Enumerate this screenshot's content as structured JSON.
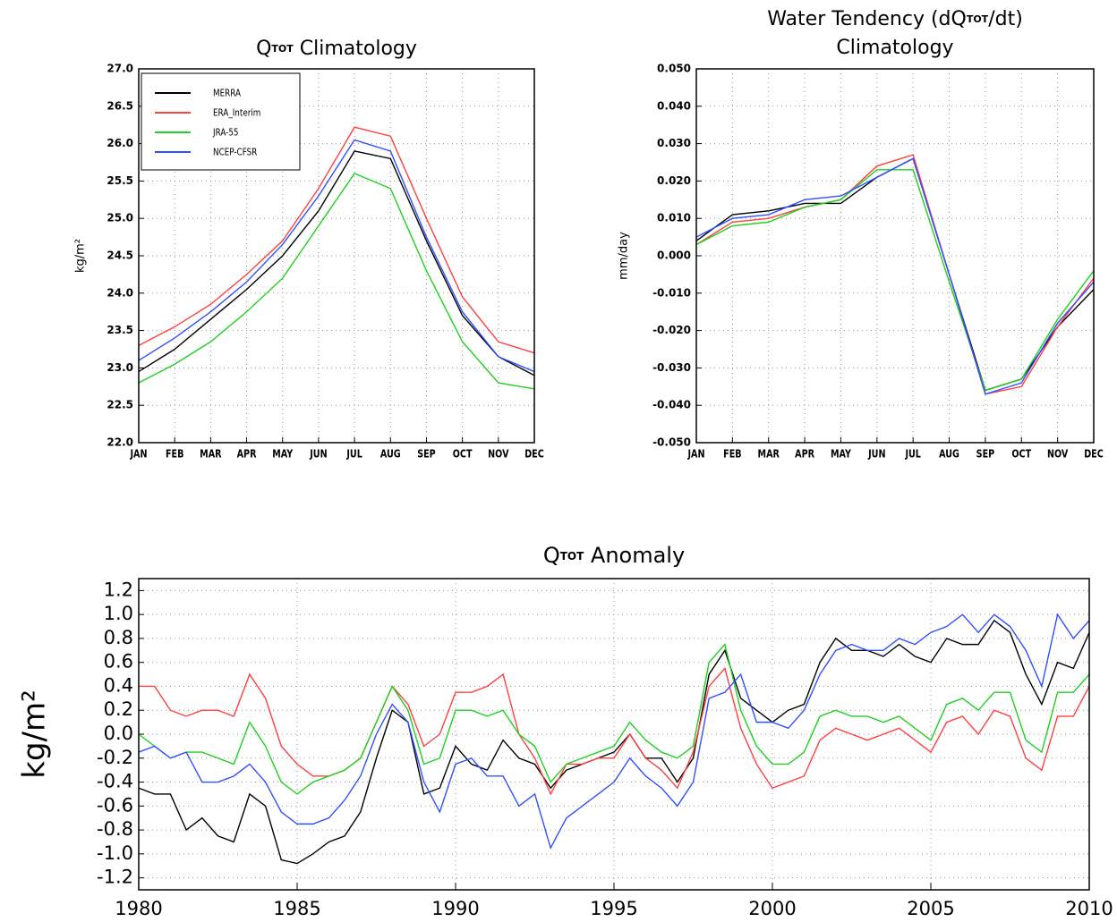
{
  "chart_data": [
    {
      "type": "line",
      "title": [
        "Q",
        "TOT",
        " Climatology"
      ],
      "ylabel": "kg/m²",
      "categories": [
        "JAN",
        "FEB",
        "MAR",
        "APR",
        "MAY",
        "JUN",
        "JUL",
        "AUG",
        "SEP",
        "OCT",
        "NOV",
        "DEC"
      ],
      "ylim": [
        22.0,
        27.0
      ],
      "yticks": [
        {
          "value": 22,
          "label": "22.0"
        },
        22.5,
        {
          "value": 23,
          "label": "23.0"
        },
        23.5,
        {
          "value": 24,
          "label": "24.0"
        },
        24.5,
        {
          "value": 25,
          "label": "25.0"
        },
        25.5,
        {
          "value": 26,
          "label": "26.0"
        },
        26.5,
        {
          "value": 27,
          "label": "27.0"
        }
      ],
      "grid": true,
      "legend": "upper left",
      "series": [
        {
          "name": "MERRA",
          "color": "#000000",
          "values": [
            22.95,
            23.25,
            23.65,
            24.05,
            24.5,
            25.1,
            25.9,
            25.8,
            24.7,
            23.7,
            23.15,
            22.9
          ]
        },
        {
          "name": "ERA_Interim",
          "color": "#ff4040",
          "values": [
            23.3,
            23.55,
            23.85,
            24.25,
            24.7,
            25.4,
            26.22,
            26.1,
            25.0,
            23.95,
            23.35,
            23.2
          ]
        },
        {
          "name": "JRA-55",
          "color": "#20d020",
          "values": [
            22.8,
            23.05,
            23.35,
            23.75,
            24.2,
            24.9,
            25.6,
            25.4,
            24.3,
            23.35,
            22.8,
            22.72
          ]
        },
        {
          "name": "NCEP-CFSR",
          "color": "#3050ff",
          "values": [
            23.1,
            23.4,
            23.75,
            24.15,
            24.65,
            25.3,
            26.05,
            25.9,
            24.75,
            23.75,
            23.15,
            22.95
          ]
        }
      ]
    },
    {
      "type": "line",
      "title": [
        "Water Tendency (dQ",
        "TOT",
        "/dt)"
      ],
      "subtitle": "Climatology",
      "ylabel": "mm/day",
      "categories": [
        "JAN",
        "FEB",
        "MAR",
        "APR",
        "MAY",
        "JUN",
        "JUL",
        "AUG",
        "SEP",
        "OCT",
        "NOV",
        "DEC"
      ],
      "ylim": [
        -0.05,
        0.05
      ],
      "yticks": [
        {
          "value": -0.05,
          "label": "-0.050"
        },
        {
          "value": -0.04,
          "label": "-0.040"
        },
        {
          "value": -0.03,
          "label": "-0.030"
        },
        {
          "value": -0.02,
          "label": "-0.020"
        },
        {
          "value": -0.01,
          "label": "-0.010"
        },
        {
          "value": 0,
          "label": "0.000"
        },
        {
          "value": 0.01,
          "label": "0.010"
        },
        {
          "value": 0.02,
          "label": "0.020"
        },
        {
          "value": 0.03,
          "label": "0.030"
        },
        {
          "value": 0.04,
          "label": "0.040"
        },
        {
          "value": 0.05,
          "label": "0.050"
        }
      ],
      "grid": true,
      "series": [
        {
          "color": "#000000",
          "values": [
            0.004,
            0.011,
            0.012,
            0.014,
            0.014,
            0.021,
            0.026,
            -0.005,
            -0.036,
            -0.033,
            -0.019,
            -0.009
          ]
        },
        {
          "color": "#ff4040",
          "values": [
            0.003,
            0.009,
            0.01,
            0.013,
            0.015,
            0.024,
            0.027,
            -0.005,
            -0.037,
            -0.035,
            -0.019,
            -0.006
          ]
        },
        {
          "color": "#20d020",
          "values": [
            0.003,
            0.008,
            0.009,
            0.013,
            0.015,
            0.023,
            0.023,
            -0.007,
            -0.036,
            -0.033,
            -0.017,
            -0.004
          ]
        },
        {
          "color": "#3050ff",
          "values": [
            0.005,
            0.01,
            0.011,
            0.015,
            0.016,
            0.021,
            0.026,
            -0.005,
            -0.037,
            -0.034,
            -0.018,
            -0.007
          ]
        }
      ]
    },
    {
      "type": "line",
      "title": [
        "Q",
        "TOT",
        " Anomaly"
      ],
      "ylabel": "kg/m²",
      "x": [
        1980,
        1980.5,
        1981,
        1981.5,
        1982,
        1982.5,
        1983,
        1983.5,
        1984,
        1984.5,
        1985,
        1985.5,
        1986,
        1986.5,
        1987,
        1987.5,
        1988,
        1988.5,
        1989,
        1989.5,
        1990,
        1990.5,
        1991,
        1991.5,
        1992,
        1992.5,
        1993,
        1993.5,
        1994,
        1994.5,
        1995,
        1995.5,
        1996,
        1996.5,
        1997,
        1997.5,
        1998,
        1998.5,
        1999,
        1999.5,
        2000,
        2000.5,
        2001,
        2001.5,
        2002,
        2002.5,
        2003,
        2003.5,
        2004,
        2004.5,
        2005,
        2005.5,
        2006,
        2006.5,
        2007,
        2007.5,
        2008,
        2008.5,
        2009,
        2009.5,
        2010
      ],
      "xlim": [
        1980,
        2010
      ],
      "xticks": [
        1980,
        1985,
        1990,
        1995,
        2000,
        2005,
        2010
      ],
      "ylim": [
        -1.3,
        1.3
      ],
      "yticks": [
        -1.2,
        {
          "value": -1,
          "label": "-1.0"
        },
        -0.8,
        -0.6,
        -0.4,
        -0.2,
        {
          "value": 0,
          "label": "0.0"
        },
        0.2,
        0.4,
        0.6,
        0.8,
        {
          "value": 1,
          "label": "1.0"
        },
        1.2
      ],
      "grid": true,
      "series": [
        {
          "color": "#000000",
          "values": [
            -0.45,
            -0.5,
            -0.5,
            -0.8,
            -0.7,
            -0.85,
            -0.9,
            -0.5,
            -0.6,
            -1.05,
            -1.08,
            -1.0,
            -0.9,
            -0.85,
            -0.65,
            -0.2,
            0.2,
            0.1,
            -0.5,
            -0.45,
            -0.1,
            -0.25,
            -0.3,
            -0.05,
            -0.2,
            -0.25,
            -0.45,
            -0.3,
            -0.25,
            -0.2,
            -0.15,
            0.0,
            -0.2,
            -0.2,
            -0.4,
            -0.2,
            0.5,
            0.7,
            0.3,
            0.2,
            0.1,
            0.2,
            0.25,
            0.6,
            0.8,
            0.7,
            0.7,
            0.65,
            0.75,
            0.65,
            0.6,
            0.8,
            0.75,
            0.75,
            0.95,
            0.85,
            0.5,
            0.25,
            0.6,
            0.55,
            0.85
          ]
        },
        {
          "color": "#ff4040",
          "values": [
            0.4,
            0.4,
            0.2,
            0.15,
            0.2,
            0.2,
            0.15,
            0.5,
            0.3,
            -0.1,
            -0.25,
            -0.35,
            -0.35,
            -0.3,
            -0.2,
            0.1,
            0.4,
            0.25,
            -0.1,
            0.0,
            0.35,
            0.35,
            0.4,
            0.5,
            0.0,
            -0.2,
            -0.5,
            -0.25,
            -0.25,
            -0.2,
            -0.2,
            0.0,
            -0.2,
            -0.3,
            -0.45,
            -0.15,
            0.4,
            0.55,
            0.05,
            -0.25,
            -0.45,
            -0.4,
            -0.35,
            -0.05,
            0.05,
            0.0,
            -0.05,
            0.0,
            0.05,
            -0.05,
            -0.15,
            0.1,
            0.15,
            0.0,
            0.2,
            0.15,
            -0.2,
            -0.3,
            0.15,
            0.15,
            0.4
          ]
        },
        {
          "color": "#20d020",
          "values": [
            0.0,
            -0.1,
            -0.2,
            -0.15,
            -0.15,
            -0.2,
            -0.25,
            0.1,
            -0.1,
            -0.4,
            -0.5,
            -0.4,
            -0.35,
            -0.3,
            -0.2,
            0.1,
            0.4,
            0.2,
            -0.25,
            -0.2,
            0.2,
            0.2,
            0.15,
            0.2,
            0.0,
            -0.1,
            -0.4,
            -0.25,
            -0.2,
            -0.15,
            -0.1,
            0.1,
            -0.05,
            -0.15,
            -0.2,
            -0.1,
            0.6,
            0.75,
            0.2,
            -0.1,
            -0.25,
            -0.25,
            -0.15,
            0.15,
            0.2,
            0.15,
            0.15,
            0.1,
            0.15,
            0.05,
            -0.05,
            0.25,
            0.3,
            0.2,
            0.35,
            0.35,
            -0.05,
            -0.15,
            0.35,
            0.35,
            0.5
          ]
        },
        {
          "color": "#3050ff",
          "values": [
            -0.15,
            -0.1,
            -0.2,
            -0.15,
            -0.4,
            -0.4,
            -0.35,
            -0.25,
            -0.4,
            -0.65,
            -0.75,
            -0.75,
            -0.7,
            -0.55,
            -0.35,
            0.0,
            0.25,
            0.1,
            -0.4,
            -0.65,
            -0.25,
            -0.2,
            -0.35,
            -0.35,
            -0.6,
            -0.5,
            -0.95,
            -0.7,
            -0.6,
            -0.5,
            -0.4,
            -0.2,
            -0.35,
            -0.45,
            -0.6,
            -0.4,
            0.3,
            0.35,
            0.5,
            0.1,
            0.1,
            0.05,
            0.2,
            0.5,
            0.7,
            0.75,
            0.7,
            0.7,
            0.8,
            0.75,
            0.85,
            0.9,
            1.0,
            0.85,
            1.0,
            0.9,
            0.7,
            0.4,
            1.0,
            0.8,
            0.95
          ]
        }
      ]
    }
  ]
}
